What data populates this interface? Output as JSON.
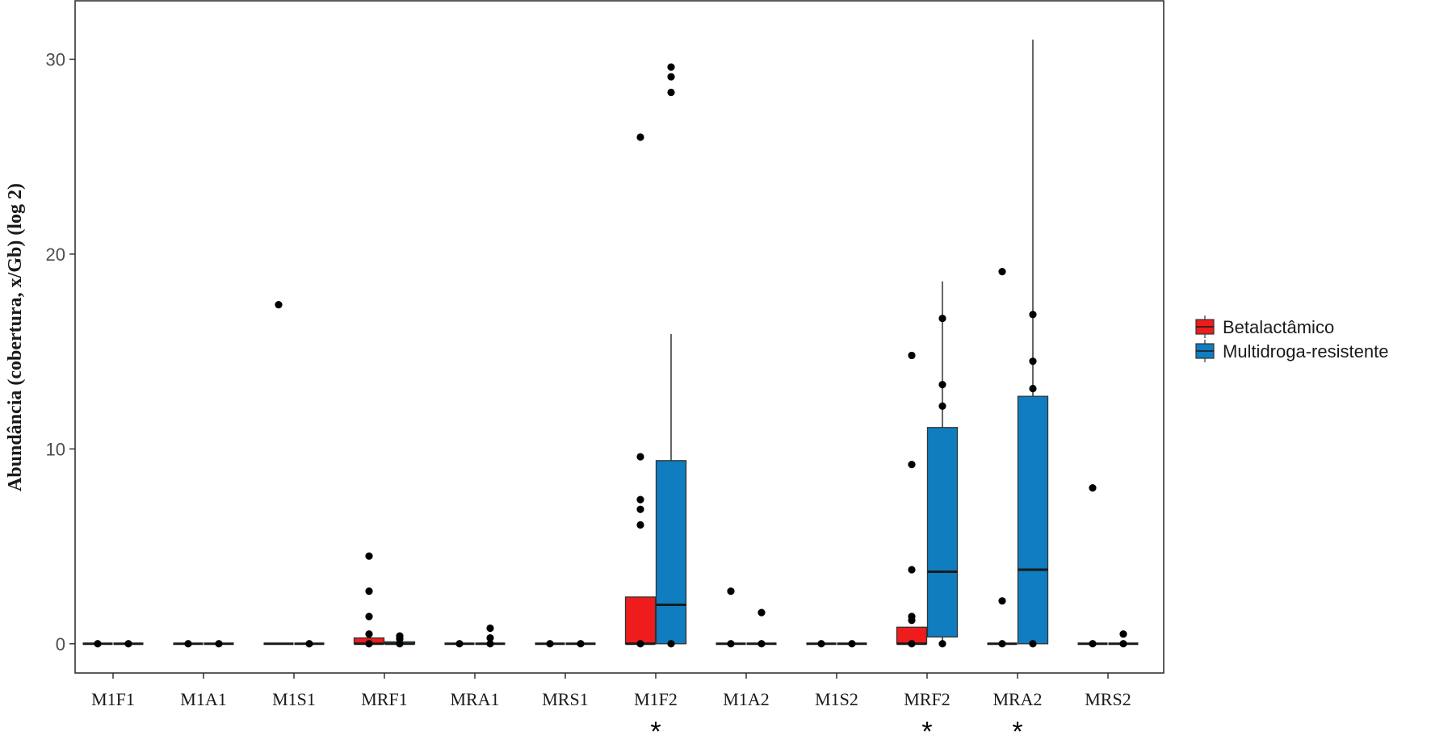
{
  "chart_data": {
    "type": "box",
    "title": "",
    "xlabel": "",
    "ylabel": "Abundância (cobertura, x/Gb) (log 2)",
    "ylim": [
      -1.5,
      33
    ],
    "yticks": [
      0,
      10,
      20,
      30
    ],
    "grid": false,
    "legend_position": "right",
    "categories": [
      "M1F1",
      "M1A1",
      "M1S1",
      "MRF1",
      "MRA1",
      "MRS1",
      "M1F2",
      "M1A2",
      "M1S2",
      "MRF2",
      "MRA2",
      "MRS2"
    ],
    "significance_markers": [
      {
        "category": "M1F2",
        "label": "*"
      },
      {
        "category": "MRF2",
        "label": "*"
      },
      {
        "category": "MRA2",
        "label": "*"
      }
    ],
    "series": [
      {
        "name": "Betalactâmico",
        "color": "#ee1c1c",
        "boxes": [
          {
            "q1": 0,
            "median": 0,
            "q3": 0,
            "whisker_low": 0,
            "whisker_high": 0,
            "outliers": [
              0
            ]
          },
          {
            "q1": 0,
            "median": 0,
            "q3": 0,
            "whisker_low": 0,
            "whisker_high": 0,
            "outliers": [
              0
            ]
          },
          {
            "q1": 0,
            "median": 0,
            "q3": 0,
            "whisker_low": 0,
            "whisker_high": 0,
            "outliers": [
              17.4
            ]
          },
          {
            "q1": 0,
            "median": 0,
            "q3": 0.3,
            "whisker_low": 0,
            "whisker_high": 0.3,
            "outliers": [
              0.5,
              1.4,
              2.7,
              4.5,
              0
            ]
          },
          {
            "q1": 0,
            "median": 0,
            "q3": 0,
            "whisker_low": 0,
            "whisker_high": 0,
            "outliers": [
              0
            ]
          },
          {
            "q1": 0,
            "median": 0,
            "q3": 0,
            "whisker_low": 0,
            "whisker_high": 0,
            "outliers": [
              0
            ]
          },
          {
            "q1": 0,
            "median": 0,
            "q3": 2.4,
            "whisker_low": 0,
            "whisker_high": 2.4,
            "outliers": [
              6.1,
              6.9,
              7.4,
              9.6,
              26,
              0
            ]
          },
          {
            "q1": 0,
            "median": 0,
            "q3": 0,
            "whisker_low": 0,
            "whisker_high": 0,
            "outliers": [
              2.7,
              0
            ]
          },
          {
            "q1": 0,
            "median": 0,
            "q3": 0,
            "whisker_low": 0,
            "whisker_high": 0,
            "outliers": [
              0
            ]
          },
          {
            "q1": 0,
            "median": 0,
            "q3": 0.85,
            "whisker_low": 0,
            "whisker_high": 0.85,
            "outliers": [
              1.2,
              1.4,
              3.8,
              9.2,
              14.8,
              0
            ]
          },
          {
            "q1": 0,
            "median": 0,
            "q3": 0,
            "whisker_low": 0,
            "whisker_high": 0,
            "outliers": [
              2.2,
              19.1,
              0
            ]
          },
          {
            "q1": 0,
            "median": 0,
            "q3": 0,
            "whisker_low": 0,
            "whisker_high": 0,
            "outliers": [
              8.0,
              0
            ]
          }
        ]
      },
      {
        "name": "Multidroga-resistente",
        "color": "#0f7dbf",
        "boxes": [
          {
            "q1": 0,
            "median": 0,
            "q3": 0,
            "whisker_low": 0,
            "whisker_high": 0,
            "outliers": [
              0
            ]
          },
          {
            "q1": 0,
            "median": 0,
            "q3": 0,
            "whisker_low": 0,
            "whisker_high": 0,
            "outliers": [
              0
            ]
          },
          {
            "q1": 0,
            "median": 0,
            "q3": 0,
            "whisker_low": 0,
            "whisker_high": 0,
            "outliers": [
              0
            ]
          },
          {
            "q1": 0,
            "median": 0,
            "q3": 0.1,
            "whisker_low": 0,
            "whisker_high": 0.1,
            "outliers": [
              0.25,
              0.4,
              0
            ]
          },
          {
            "q1": 0,
            "median": 0,
            "q3": 0,
            "whisker_low": 0,
            "whisker_high": 0,
            "outliers": [
              0.8,
              0.3,
              0
            ]
          },
          {
            "q1": 0,
            "median": 0,
            "q3": 0,
            "whisker_low": 0,
            "whisker_high": 0,
            "outliers": [
              0
            ]
          },
          {
            "q1": 0,
            "median": 2.0,
            "q3": 9.4,
            "whisker_low": 0,
            "whisker_high": 15.9,
            "outliers": [
              28.3,
              29.1,
              29.6,
              0
            ]
          },
          {
            "q1": 0,
            "median": 0,
            "q3": 0,
            "whisker_low": 0,
            "whisker_high": 0,
            "outliers": [
              1.6,
              0
            ]
          },
          {
            "q1": 0,
            "median": 0,
            "q3": 0,
            "whisker_low": 0,
            "whisker_high": 0,
            "outliers": [
              0
            ]
          },
          {
            "q1": 0.35,
            "median": 3.7,
            "q3": 11.1,
            "whisker_low": 0,
            "whisker_high": 18.6,
            "outliers": [
              12.2,
              13.3,
              16.7,
              0
            ]
          },
          {
            "q1": 0,
            "median": 3.8,
            "q3": 12.7,
            "whisker_low": 0,
            "whisker_high": 31,
            "outliers": [
              13.1,
              14.5,
              16.9,
              0
            ]
          },
          {
            "q1": 0,
            "median": 0,
            "q3": 0,
            "whisker_low": 0,
            "whisker_high": 0,
            "outliers": [
              0.5,
              0
            ]
          }
        ]
      }
    ]
  }
}
